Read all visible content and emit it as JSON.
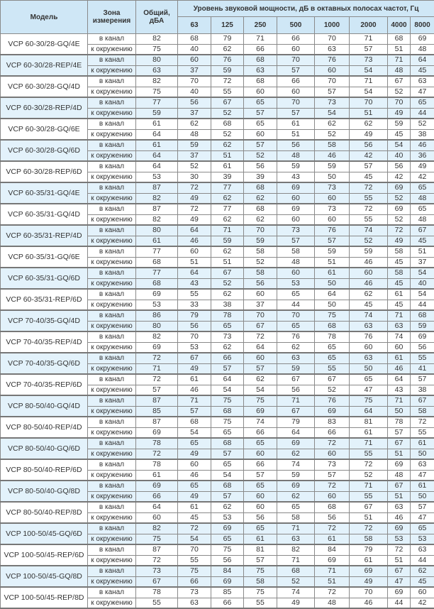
{
  "header": {
    "model": "Модель",
    "zone": "Зона измерения",
    "total": "Общий, дБА",
    "band_title": "Уровень звуковой мощности, дБ в октавных полосах частот, Гц",
    "bands": [
      "63",
      "125",
      "250",
      "500",
      "1000",
      "2000",
      "4000",
      "8000"
    ]
  },
  "zones": [
    "в канал",
    "к окружению"
  ],
  "colors": {
    "header_bg": "#cfe7f6",
    "row_alt_bg": "#e3f2fb",
    "border": "#8a8a8a"
  },
  "rows": [
    {
      "model": "VCP 60-30/28-GQ/4E",
      "duct": [
        "82",
        "68",
        "79",
        "71",
        "66",
        "70",
        "71",
        "68",
        "69"
      ],
      "env": [
        "75",
        "40",
        "62",
        "66",
        "60",
        "63",
        "57",
        "51",
        "48"
      ]
    },
    {
      "model": "VCP 60-30/28-REP/4E",
      "duct": [
        "80",
        "60",
        "76",
        "68",
        "70",
        "76",
        "73",
        "71",
        "64"
      ],
      "env": [
        "63",
        "37",
        "59",
        "63",
        "57",
        "60",
        "54",
        "48",
        "45"
      ]
    },
    {
      "model": "VCP 60-30/28-GQ/4D",
      "duct": [
        "82",
        "70",
        "72",
        "68",
        "66",
        "70",
        "71",
        "67",
        "63"
      ],
      "env": [
        "75",
        "40",
        "55",
        "60",
        "60",
        "57",
        "54",
        "52",
        "47"
      ]
    },
    {
      "model": "VCP 60-30/28-REP/4D",
      "duct": [
        "77",
        "56",
        "67",
        "65",
        "70",
        "73",
        "70",
        "70",
        "65"
      ],
      "env": [
        "59",
        "37",
        "52",
        "57",
        "57",
        "54",
        "51",
        "49",
        "44"
      ]
    },
    {
      "model": "VCP 60-30/28-GQ/6E",
      "duct": [
        "61",
        "62",
        "68",
        "65",
        "61",
        "62",
        "62",
        "59",
        "52"
      ],
      "env": [
        "64",
        "48",
        "52",
        "60",
        "51",
        "52",
        "49",
        "45",
        "38"
      ]
    },
    {
      "model": "VCP 60-30/28-GQ/6D",
      "duct": [
        "61",
        "59",
        "62",
        "57",
        "56",
        "58",
        "56",
        "54",
        "46"
      ],
      "env": [
        "64",
        "37",
        "51",
        "52",
        "48",
        "46",
        "42",
        "40",
        "36"
      ]
    },
    {
      "model": "VCP 60-30/28-REP/6D",
      "duct": [
        "64",
        "52",
        "61",
        "56",
        "59",
        "59",
        "57",
        "56",
        "49"
      ],
      "env": [
        "53",
        "30",
        "39",
        "39",
        "43",
        "50",
        "45",
        "42",
        "42"
      ]
    },
    {
      "model": "VCP 60-35/31-GQ/4E",
      "duct": [
        "87",
        "72",
        "77",
        "68",
        "69",
        "73",
        "72",
        "69",
        "65"
      ],
      "env": [
        "82",
        "49",
        "62",
        "62",
        "60",
        "60",
        "55",
        "52",
        "48"
      ]
    },
    {
      "model": "VCP 60-35/31-GQ/4D",
      "duct": [
        "87",
        "72",
        "77",
        "68",
        "69",
        "73",
        "72",
        "69",
        "65"
      ],
      "env": [
        "82",
        "49",
        "62",
        "62",
        "60",
        "60",
        "55",
        "52",
        "48"
      ]
    },
    {
      "model": "VCP 60-35/31-REP/4D",
      "duct": [
        "80",
        "64",
        "71",
        "70",
        "73",
        "76",
        "74",
        "72",
        "67"
      ],
      "env": [
        "61",
        "46",
        "59",
        "59",
        "57",
        "57",
        "52",
        "49",
        "45"
      ]
    },
    {
      "model": "VCP 60-35/31-GQ/6E",
      "duct": [
        "77",
        "60",
        "62",
        "58",
        "58",
        "59",
        "59",
        "58",
        "51"
      ],
      "env": [
        "68",
        "51",
        "51",
        "52",
        "48",
        "51",
        "46",
        "45",
        "37"
      ]
    },
    {
      "model": "VCP 60-35/31-GQ/6D",
      "duct": [
        "77",
        "64",
        "67",
        "58",
        "60",
        "61",
        "60",
        "58",
        "54"
      ],
      "env": [
        "68",
        "43",
        "52",
        "56",
        "53",
        "50",
        "46",
        "45",
        "40"
      ]
    },
    {
      "model": "VCP 60-35/31-REP/6D",
      "duct": [
        "69",
        "55",
        "62",
        "60",
        "65",
        "64",
        "62",
        "61",
        "54"
      ],
      "env": [
        "53",
        "33",
        "38",
        "37",
        "44",
        "50",
        "45",
        "45",
        "44"
      ]
    },
    {
      "model": "VCP 70-40/35-GQ/4D",
      "duct": [
        "86",
        "79",
        "78",
        "70",
        "70",
        "75",
        "74",
        "71",
        "68"
      ],
      "env": [
        "80",
        "56",
        "65",
        "67",
        "65",
        "68",
        "63",
        "63",
        "59"
      ]
    },
    {
      "model": "VCP 70-40/35-REP/4D",
      "duct": [
        "82",
        "70",
        "73",
        "72",
        "76",
        "78",
        "76",
        "74",
        "69"
      ],
      "env": [
        "69",
        "53",
        "62",
        "64",
        "62",
        "65",
        "60",
        "60",
        "56"
      ]
    },
    {
      "model": "VCP 70-40/35-GQ/6D",
      "duct": [
        "72",
        "67",
        "66",
        "60",
        "63",
        "65",
        "63",
        "61",
        "55"
      ],
      "env": [
        "71",
        "49",
        "57",
        "57",
        "59",
        "55",
        "50",
        "46",
        "41"
      ]
    },
    {
      "model": "VCP 70-40/35-REP/6D",
      "duct": [
        "72",
        "61",
        "64",
        "62",
        "67",
        "67",
        "65",
        "64",
        "57"
      ],
      "env": [
        "57",
        "46",
        "54",
        "54",
        "56",
        "52",
        "47",
        "43",
        "38"
      ]
    },
    {
      "model": "VCP 80-50/40-GQ/4D",
      "duct": [
        "87",
        "71",
        "75",
        "75",
        "71",
        "76",
        "75",
        "71",
        "67"
      ],
      "env": [
        "85",
        "57",
        "68",
        "69",
        "67",
        "69",
        "64",
        "50",
        "58"
      ]
    },
    {
      "model": "VCP 80-50/40-REP/4D",
      "duct": [
        "87",
        "68",
        "75",
        "74",
        "79",
        "83",
        "81",
        "78",
        "72"
      ],
      "env": [
        "69",
        "54",
        "65",
        "66",
        "64",
        "66",
        "61",
        "57",
        "55"
      ]
    },
    {
      "model": "VCP 80-50/40-GQ/6D",
      "duct": [
        "78",
        "65",
        "68",
        "65",
        "69",
        "72",
        "71",
        "67",
        "61"
      ],
      "env": [
        "72",
        "49",
        "57",
        "60",
        "62",
        "60",
        "55",
        "51",
        "50"
      ]
    },
    {
      "model": "VCP 80-50/40-REP/6D",
      "duct": [
        "78",
        "60",
        "65",
        "66",
        "74",
        "73",
        "72",
        "69",
        "63"
      ],
      "env": [
        "61",
        "46",
        "54",
        "57",
        "59",
        "57",
        "52",
        "48",
        "47"
      ]
    },
    {
      "model": "VCP 80-50/40-GQ/8D",
      "duct": [
        "69",
        "65",
        "68",
        "65",
        "69",
        "72",
        "71",
        "67",
        "61"
      ],
      "env": [
        "66",
        "49",
        "57",
        "60",
        "62",
        "60",
        "55",
        "51",
        "50"
      ]
    },
    {
      "model": "VCP 80-50/40-REP/8D",
      "duct": [
        "64",
        "61",
        "62",
        "60",
        "65",
        "68",
        "67",
        "63",
        "57"
      ],
      "env": [
        "60",
        "45",
        "53",
        "56",
        "58",
        "56",
        "51",
        "46",
        "47"
      ]
    },
    {
      "model": "VCP 100-50/45-GQ/6D",
      "duct": [
        "82",
        "72",
        "69",
        "65",
        "71",
        "72",
        "72",
        "69",
        "65"
      ],
      "env": [
        "75",
        "54",
        "65",
        "61",
        "63",
        "61",
        "58",
        "53",
        "53"
      ]
    },
    {
      "model": "VCP 100-50/45-REP/6D",
      "duct": [
        "87",
        "70",
        "75",
        "81",
        "82",
        "84",
        "79",
        "72",
        "63"
      ],
      "env": [
        "72",
        "55",
        "56",
        "57",
        "71",
        "69",
        "61",
        "51",
        "44"
      ]
    },
    {
      "model": "VCP 100-50/45-GQ/8D",
      "duct": [
        "73",
        "75",
        "84",
        "75",
        "68",
        "71",
        "69",
        "67",
        "62"
      ],
      "env": [
        "67",
        "66",
        "69",
        "58",
        "52",
        "51",
        "49",
        "47",
        "45"
      ]
    },
    {
      "model": "VCP 100-50/45-REP/8D",
      "duct": [
        "78",
        "73",
        "85",
        "75",
        "74",
        "72",
        "70",
        "69",
        "60"
      ],
      "env": [
        "55",
        "63",
        "66",
        "55",
        "49",
        "48",
        "46",
        "44",
        "42"
      ]
    }
  ]
}
